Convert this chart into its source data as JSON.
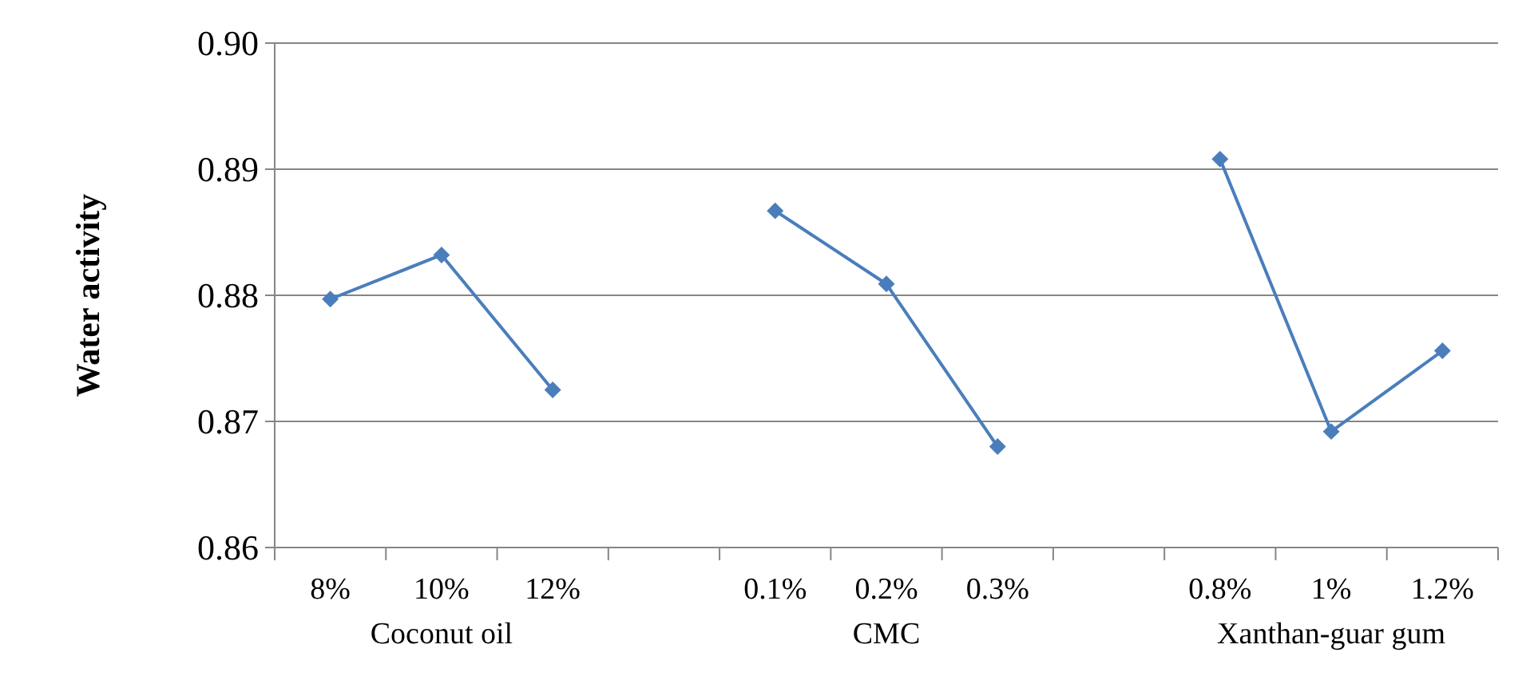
{
  "chart_data": {
    "type": "line",
    "ylabel": "Water activity",
    "categories": [
      "8%",
      "10%",
      "12%",
      null,
      "0.1%",
      "0.2%",
      "0.3%",
      null,
      "0.8%",
      "1%",
      "1.2%"
    ],
    "series": [
      {
        "color": "#4a7ebb",
        "values": [
          0.8797,
          0.8832,
          0.8725,
          null,
          0.8867,
          0.8809,
          0.868,
          null,
          0.8908,
          0.8692,
          0.8756
        ]
      }
    ],
    "ylim": [
      0.86,
      0.9
    ],
    "yticks": [
      0.86,
      0.87,
      0.88,
      0.89,
      {
        "value": 0.9,
        "label": "0.90"
      }
    ],
    "grid": "y",
    "marker": "diamond",
    "line_style": "solid",
    "annotations": [
      "Coconut oil",
      "CMC",
      "Xanthan-guar gum"
    ]
  }
}
